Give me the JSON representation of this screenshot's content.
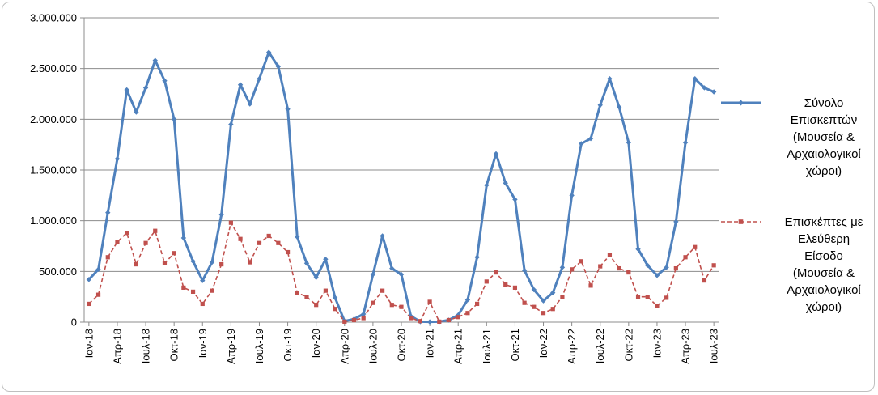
{
  "chart_data": {
    "type": "line",
    "title": "",
    "xlabel": "",
    "ylabel": "",
    "ylim": [
      0,
      3000000
    ],
    "yticks": [
      0,
      500000,
      1000000,
      1500000,
      2000000,
      2500000,
      3000000
    ],
    "ytick_labels": [
      "0",
      "500.000",
      "1.000.000",
      "1.500.000",
      "2.000.000",
      "2.500.000",
      "3.000.000"
    ],
    "grid": "horizontal",
    "legend_position": "right",
    "categories": [
      "Ιαν-18",
      "Φεβ-18",
      "Μαρ-18",
      "Απρ-18",
      "Μαϊ-18",
      "Ιουν-18",
      "Ιουλ-18",
      "Αυγ-18",
      "Σεπ-18",
      "Οκτ-18",
      "Νοε-18",
      "Δεκ-18",
      "Ιαν-19",
      "Φεβ-19",
      "Μαρ-19",
      "Απρ-19",
      "Μαϊ-19",
      "Ιουν-19",
      "Ιουλ-19",
      "Αυγ-19",
      "Σεπ-19",
      "Οκτ-19",
      "Νοε-19",
      "Δεκ-19",
      "Ιαν-20",
      "Φεβ-20",
      "Μαρ-20",
      "Απρ-20",
      "Μαϊ-20",
      "Ιουν-20",
      "Ιουλ-20",
      "Αυγ-20",
      "Σεπ-20",
      "Οκτ-20",
      "Νοε-20",
      "Δεκ-20",
      "Ιαν-21",
      "Φεβ-21",
      "Μαρ-21",
      "Απρ-21",
      "Μαϊ-21",
      "Ιουν-21",
      "Ιουλ-21",
      "Αυγ-21",
      "Σεπ-21",
      "Οκτ-21",
      "Νοε-21",
      "Δεκ-21",
      "Ιαν-22",
      "Φεβ-22",
      "Μαρ-22",
      "Απρ-22",
      "Μαϊ-22",
      "Ιουν-22",
      "Ιουλ-22",
      "Αυγ-22",
      "Σεπ-22",
      "Οκτ-22",
      "Νοε-22",
      "Δεκ-22",
      "Ιαν-23",
      "Φεβ-23",
      "Μαρ-23",
      "Απρ-23",
      "Μαϊ-23",
      "Ιουν-23",
      "Ιουλ-23"
    ],
    "x_tick_labels": [
      {
        "index": 0,
        "label": "Ιαν-18"
      },
      {
        "index": 3,
        "label": "Απρ-18"
      },
      {
        "index": 6,
        "label": "Ιουλ-18"
      },
      {
        "index": 9,
        "label": "Οκτ-18"
      },
      {
        "index": 12,
        "label": "Ιαν-19"
      },
      {
        "index": 15,
        "label": "Απρ-19"
      },
      {
        "index": 18,
        "label": "Ιουλ-19"
      },
      {
        "index": 21,
        "label": "Οκτ-19"
      },
      {
        "index": 24,
        "label": "Ιαν-20"
      },
      {
        "index": 27,
        "label": "Απρ-20"
      },
      {
        "index": 30,
        "label": "Ιουλ-20"
      },
      {
        "index": 33,
        "label": "Οκτ-20"
      },
      {
        "index": 36,
        "label": "Ιαν-21"
      },
      {
        "index": 39,
        "label": "Απρ-21"
      },
      {
        "index": 42,
        "label": "Ιουλ-21"
      },
      {
        "index": 45,
        "label": "Οκτ-21"
      },
      {
        "index": 48,
        "label": "Ιαν-22"
      },
      {
        "index": 51,
        "label": "Απρ-22"
      },
      {
        "index": 54,
        "label": "Ιουλ-22"
      },
      {
        "index": 57,
        "label": "Οκτ-22"
      },
      {
        "index": 60,
        "label": "Ιαν-23"
      },
      {
        "index": 63,
        "label": "Απρ-23"
      },
      {
        "index": 66,
        "label": "Ιουλ-23"
      }
    ],
    "series": [
      {
        "name": "Σύνολο Επισκεπτών (Μουσεία & Αρχαιολογικοί χώροι)",
        "legend_lines": [
          "Σύνολο",
          "Επισκεπτών",
          "(Μουσεία &",
          "Αρχαιολογικοί",
          "χώροι)"
        ],
        "color": "#4f81bd",
        "style": "solid",
        "marker": "diamond",
        "values": [
          420000,
          520000,
          1080000,
          1610000,
          2290000,
          2070000,
          2310000,
          2580000,
          2380000,
          2000000,
          830000,
          600000,
          410000,
          590000,
          1060000,
          1950000,
          2340000,
          2150000,
          2400000,
          2660000,
          2520000,
          2100000,
          840000,
          580000,
          440000,
          620000,
          240000,
          10000,
          30000,
          80000,
          470000,
          850000,
          530000,
          470000,
          60000,
          5000,
          3000,
          5000,
          20000,
          70000,
          220000,
          640000,
          1350000,
          1660000,
          1370000,
          1210000,
          510000,
          320000,
          210000,
          290000,
          540000,
          1250000,
          1760000,
          1810000,
          2140000,
          2400000,
          2120000,
          1770000,
          720000,
          560000,
          460000,
          540000,
          990000,
          1770000,
          2400000,
          2310000,
          2270000
        ]
      },
      {
        "name": "Επισκέπτες με Ελεύθερη Είσοδο (Μουσεία & Αρχαιολογικοί χώροι)",
        "legend_lines": [
          "Επισκέπτες με",
          "Ελεύθερη",
          "Είσοδο",
          "(Μουσεία &",
          "Αρχαιολογικοί",
          "χώροι)"
        ],
        "color": "#c0504d",
        "style": "dashed",
        "marker": "square",
        "values": [
          180000,
          270000,
          640000,
          790000,
          880000,
          570000,
          780000,
          900000,
          580000,
          680000,
          340000,
          300000,
          180000,
          310000,
          570000,
          980000,
          820000,
          590000,
          780000,
          850000,
          780000,
          690000,
          290000,
          250000,
          170000,
          310000,
          130000,
          5000,
          20000,
          40000,
          190000,
          310000,
          170000,
          150000,
          40000,
          10000,
          200000,
          5000,
          20000,
          50000,
          90000,
          180000,
          400000,
          490000,
          370000,
          340000,
          190000,
          150000,
          90000,
          130000,
          250000,
          520000,
          600000,
          360000,
          550000,
          660000,
          530000,
          490000,
          250000,
          250000,
          160000,
          240000,
          530000,
          640000,
          740000,
          410000,
          560000
        ]
      }
    ]
  }
}
